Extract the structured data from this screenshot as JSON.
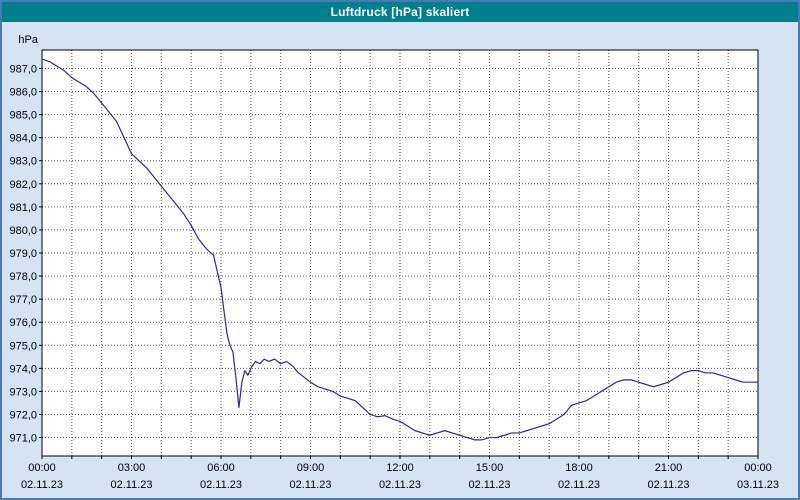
{
  "window": {
    "title": "Luftdruck [hPa] skaliert"
  },
  "colors": {
    "titlebar_bg": "#00808f",
    "titlebar_text": "#ffffff",
    "window_bg": "#d4e4f4",
    "window_border": "#4a7ab5",
    "plot_bg": "#ffffff",
    "plot_border": "#000000",
    "grid": "#555555",
    "axis_text": "#000000",
    "line": "#2a2a96"
  },
  "chart_data": {
    "type": "line",
    "title": "Luftdruck [hPa] skaliert",
    "ylabel": "hPa",
    "xlabel": "",
    "grid": {
      "style": "dashed",
      "vertical_every_hours": 1,
      "horizontal_every_hpa": 1
    },
    "legend": "none",
    "x_axis": {
      "range_hours": [
        0,
        24
      ],
      "major_tick_hours": 3,
      "tick_labels": [
        {
          "time": "00:00",
          "date": "02.11.23"
        },
        {
          "time": "03:00",
          "date": "02.11.23"
        },
        {
          "time": "06:00",
          "date": "02.11.23"
        },
        {
          "time": "09:00",
          "date": "02.11.23"
        },
        {
          "time": "12:00",
          "date": "02.11.23"
        },
        {
          "time": "15:00",
          "date": "02.11.23"
        },
        {
          "time": "18:00",
          "date": "02.11.23"
        },
        {
          "time": "21:00",
          "date": "02.11.23"
        },
        {
          "time": "00:00",
          "date": "03.11.23"
        }
      ]
    },
    "y_axis": {
      "min": 970.2,
      "max": 987.8,
      "tick_start": 971,
      "tick_end": 987,
      "tick_step": 1,
      "decimal_comma": true,
      "tick_labels": [
        "987,0",
        "986,0",
        "985,0",
        "984,0",
        "983,0",
        "982,0",
        "981,0",
        "980,0",
        "979,0",
        "978,0",
        "977,0",
        "976,0",
        "975,0",
        "974,0",
        "973,0",
        "972,0",
        "971,0"
      ]
    },
    "series": [
      {
        "name": "Luftdruck",
        "color": "#2a2a96",
        "points": [
          [
            0,
            987.4
          ],
          [
            0.25,
            987.3
          ],
          [
            0.5,
            987.1
          ],
          [
            0.75,
            986.9
          ],
          [
            1,
            986.6
          ],
          [
            1.25,
            986.4
          ],
          [
            1.5,
            986.2
          ],
          [
            1.75,
            985.9
          ],
          [
            2,
            985.5
          ],
          [
            2.25,
            985.1
          ],
          [
            2.5,
            984.7
          ],
          [
            2.75,
            984.0
          ],
          [
            3,
            983.3
          ],
          [
            3.25,
            983.0
          ],
          [
            3.5,
            982.7
          ],
          [
            3.75,
            982.3
          ],
          [
            4,
            981.9
          ],
          [
            4.25,
            981.5
          ],
          [
            4.5,
            981.1
          ],
          [
            4.75,
            980.7
          ],
          [
            5,
            980.2
          ],
          [
            5.25,
            979.6
          ],
          [
            5.5,
            979.2
          ],
          [
            5.75,
            978.9
          ],
          [
            6,
            977.5
          ],
          [
            6.1,
            976.5
          ],
          [
            6.2,
            975.5
          ],
          [
            6.3,
            975.0
          ],
          [
            6.4,
            974.7
          ],
          [
            6.5,
            973.6
          ],
          [
            6.6,
            972.3
          ],
          [
            6.7,
            973.4
          ],
          [
            6.8,
            973.9
          ],
          [
            6.9,
            973.7
          ],
          [
            7,
            974.0
          ],
          [
            7.15,
            974.3
          ],
          [
            7.3,
            974.2
          ],
          [
            7.45,
            974.4
          ],
          [
            7.6,
            974.3
          ],
          [
            7.8,
            974.4
          ],
          [
            8,
            974.2
          ],
          [
            8.2,
            974.3
          ],
          [
            8.4,
            974.1
          ],
          [
            8.6,
            973.8
          ],
          [
            8.8,
            973.6
          ],
          [
            9,
            973.4
          ],
          [
            9.25,
            973.2
          ],
          [
            9.5,
            973.1
          ],
          [
            9.75,
            973.0
          ],
          [
            10,
            972.8
          ],
          [
            10.25,
            972.7
          ],
          [
            10.5,
            972.6
          ],
          [
            10.75,
            972.3
          ],
          [
            11,
            972.0
          ],
          [
            11.25,
            971.9
          ],
          [
            11.5,
            971.95
          ],
          [
            11.75,
            971.8
          ],
          [
            12,
            971.7
          ],
          [
            12.25,
            971.5
          ],
          [
            12.5,
            971.3
          ],
          [
            12.75,
            971.2
          ],
          [
            13,
            971.1
          ],
          [
            13.25,
            971.2
          ],
          [
            13.5,
            971.3
          ],
          [
            13.75,
            971.2
          ],
          [
            14,
            971.1
          ],
          [
            14.25,
            971.0
          ],
          [
            14.5,
            970.9
          ],
          [
            14.75,
            970.9
          ],
          [
            15,
            971.0
          ],
          [
            15.25,
            971.0
          ],
          [
            15.5,
            971.1
          ],
          [
            15.75,
            971.2
          ],
          [
            16,
            971.2
          ],
          [
            16.25,
            971.3
          ],
          [
            16.5,
            971.4
          ],
          [
            16.75,
            971.5
          ],
          [
            17,
            971.6
          ],
          [
            17.25,
            971.8
          ],
          [
            17.5,
            972.0
          ],
          [
            17.75,
            972.4
          ],
          [
            18,
            972.5
          ],
          [
            18.25,
            972.6
          ],
          [
            18.5,
            972.8
          ],
          [
            18.75,
            973.0
          ],
          [
            19,
            973.2
          ],
          [
            19.25,
            973.4
          ],
          [
            19.5,
            973.5
          ],
          [
            19.75,
            973.5
          ],
          [
            20,
            973.4
          ],
          [
            20.25,
            973.3
          ],
          [
            20.5,
            973.2
          ],
          [
            20.75,
            973.3
          ],
          [
            21,
            973.4
          ],
          [
            21.25,
            973.6
          ],
          [
            21.5,
            973.8
          ],
          [
            21.75,
            973.9
          ],
          [
            22,
            973.9
          ],
          [
            22.25,
            973.8
          ],
          [
            22.5,
            973.8
          ],
          [
            22.75,
            973.7
          ],
          [
            23,
            973.6
          ],
          [
            23.25,
            973.5
          ],
          [
            23.5,
            973.4
          ],
          [
            23.75,
            973.4
          ],
          [
            24,
            973.4
          ]
        ]
      }
    ]
  }
}
